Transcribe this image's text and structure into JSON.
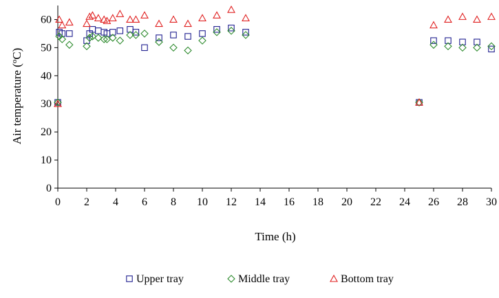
{
  "chart_data": {
    "type": "scatter",
    "title": "",
    "xlabel": "Time (h)",
    "ylabel_main": "Air temperature (",
    "ylabel_sup": "o",
    "ylabel_tail": "C)",
    "xlim": [
      0,
      30
    ],
    "ylim": [
      0,
      65
    ],
    "x_ticks": [
      0,
      2,
      4,
      6,
      8,
      10,
      12,
      14,
      16,
      18,
      20,
      22,
      24,
      26,
      28,
      30
    ],
    "y_ticks": [
      0,
      10,
      20,
      30,
      40,
      50,
      60
    ],
    "grid": false,
    "legend_position": "bottom",
    "series": [
      {
        "name": "Upper tray",
        "marker": "square",
        "color": "#1f1f8f",
        "points": [
          [
            0,
            30.5
          ],
          [
            0.1,
            55.5
          ],
          [
            0.3,
            55
          ],
          [
            0.8,
            55
          ],
          [
            2,
            52.5
          ],
          [
            2.2,
            55
          ],
          [
            2.4,
            56.5
          ],
          [
            2.8,
            56
          ],
          [
            3.2,
            55.5
          ],
          [
            3.4,
            55
          ],
          [
            3.8,
            55.5
          ],
          [
            4.3,
            56
          ],
          [
            5,
            56.5
          ],
          [
            5.4,
            55.5
          ],
          [
            6,
            50
          ],
          [
            7,
            53.5
          ],
          [
            8,
            54.5
          ],
          [
            9,
            54
          ],
          [
            10,
            55
          ],
          [
            11,
            56.5
          ],
          [
            12,
            57
          ],
          [
            13,
            55.5
          ],
          [
            25,
            30.5
          ],
          [
            26,
            52.5
          ],
          [
            27,
            52.5
          ],
          [
            28,
            52
          ],
          [
            29,
            52
          ],
          [
            30,
            49.5
          ]
        ]
      },
      {
        "name": "Middle tray",
        "marker": "diamond",
        "color": "#2e8b2e",
        "points": [
          [
            0,
            30.5
          ],
          [
            0.1,
            54
          ],
          [
            0.3,
            53
          ],
          [
            0.8,
            51
          ],
          [
            2,
            50.5
          ],
          [
            2.2,
            53.5
          ],
          [
            2.4,
            54
          ],
          [
            2.8,
            53.5
          ],
          [
            3.2,
            53
          ],
          [
            3.4,
            53
          ],
          [
            3.8,
            53.5
          ],
          [
            4.3,
            52.5
          ],
          [
            5,
            54.5
          ],
          [
            5.4,
            54.5
          ],
          [
            6,
            55
          ],
          [
            7,
            52
          ],
          [
            8,
            50
          ],
          [
            9,
            49
          ],
          [
            10,
            52.5
          ],
          [
            11,
            55.5
          ],
          [
            12,
            56
          ],
          [
            13,
            54.5
          ],
          [
            25,
            30.5
          ],
          [
            26,
            51
          ],
          [
            27,
            50.5
          ],
          [
            28,
            50
          ],
          [
            29,
            50
          ],
          [
            30,
            50.5
          ]
        ]
      },
      {
        "name": "Bottom tray",
        "marker": "triangle",
        "color": "#e02020",
        "points": [
          [
            0,
            30
          ],
          [
            0.1,
            60
          ],
          [
            0.3,
            58
          ],
          [
            0.8,
            59
          ],
          [
            2,
            58.5
          ],
          [
            2.2,
            61
          ],
          [
            2.4,
            61.5
          ],
          [
            2.8,
            60.5
          ],
          [
            3.2,
            60
          ],
          [
            3.4,
            59.5
          ],
          [
            3.8,
            60.5
          ],
          [
            4.3,
            62
          ],
          [
            5,
            60
          ],
          [
            5.4,
            60
          ],
          [
            6,
            61.5
          ],
          [
            7,
            58.5
          ],
          [
            8,
            60
          ],
          [
            9,
            58.5
          ],
          [
            10,
            60.5
          ],
          [
            11,
            61.5
          ],
          [
            12,
            63.5
          ],
          [
            13,
            60.5
          ],
          [
            25,
            30.5
          ],
          [
            26,
            58
          ],
          [
            27,
            60
          ],
          [
            28,
            61
          ],
          [
            29,
            60
          ],
          [
            30,
            61
          ]
        ]
      }
    ]
  }
}
